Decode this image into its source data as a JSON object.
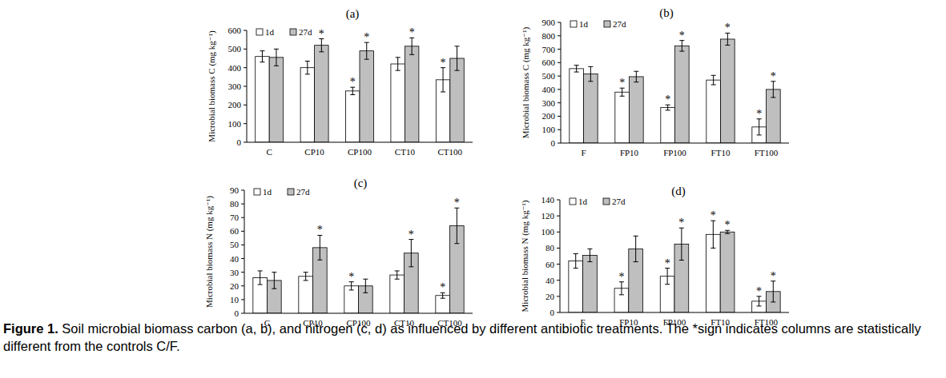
{
  "chart_data": [
    {
      "type": "bar",
      "title": "(a)",
      "y_label": "Microbial biomass C (mg kg⁻¹)",
      "categories": [
        "C",
        "CP10",
        "CP100",
        "CT10",
        "CT100"
      ],
      "series": [
        {
          "name": "1d",
          "color": "#ffffff",
          "values": [
            460,
            400,
            275,
            420,
            335
          ],
          "errors": [
            30,
            35,
            20,
            35,
            65
          ],
          "significant": [
            false,
            false,
            true,
            false,
            true
          ]
        },
        {
          "name": "27d",
          "color": "#bfbfbf",
          "values": [
            455,
            520,
            490,
            515,
            450
          ],
          "errors": [
            45,
            35,
            45,
            45,
            65
          ],
          "significant": [
            false,
            true,
            true,
            true,
            false
          ]
        }
      ],
      "significance_mark": "*",
      "ylim": [
        0,
        600
      ],
      "yticks": [
        0,
        100,
        200,
        300,
        400,
        500,
        600
      ],
      "grid": false,
      "legend": "upper left"
    },
    {
      "type": "bar",
      "title": "(b)",
      "y_label": "Microbial biomass C (mg kg⁻¹)",
      "categories": [
        "F",
        "FP10",
        "FP100",
        "FT10",
        "FT100"
      ],
      "series": [
        {
          "name": "1d",
          "color": "#ffffff",
          "values": [
            555,
            380,
            265,
            470,
            120
          ],
          "errors": [
            25,
            30,
            20,
            35,
            60
          ],
          "significant": [
            false,
            true,
            true,
            false,
            true
          ]
        },
        {
          "name": "27d",
          "color": "#bfbfbf",
          "values": [
            515,
            495,
            725,
            775,
            400
          ],
          "errors": [
            55,
            40,
            40,
            45,
            60
          ],
          "significant": [
            false,
            false,
            true,
            true,
            true
          ]
        }
      ],
      "significance_mark": "*",
      "ylim": [
        0,
        900
      ],
      "yticks": [
        0,
        100,
        200,
        300,
        400,
        500,
        600,
        700,
        800,
        900
      ],
      "grid": false,
      "legend": "upper left"
    },
    {
      "type": "bar",
      "title": "(c)",
      "y_label": "Microbial biomass N (mg kg⁻¹)",
      "categories": [
        "C",
        "CP10",
        "CP100",
        "CT10",
        "CT100"
      ],
      "series": [
        {
          "name": "1d",
          "color": "#ffffff",
          "values": [
            26,
            27,
            20,
            28,
            13
          ],
          "errors": [
            5,
            3,
            3,
            3,
            2
          ],
          "significant": [
            false,
            false,
            true,
            false,
            true
          ]
        },
        {
          "name": "27d",
          "color": "#bfbfbf",
          "values": [
            24,
            48,
            20,
            44,
            64
          ],
          "errors": [
            6,
            9,
            5,
            10,
            13
          ],
          "significant": [
            false,
            true,
            false,
            true,
            true
          ]
        }
      ],
      "significance_mark": "*",
      "ylim": [
        0,
        90
      ],
      "yticks": [
        0,
        10,
        20,
        30,
        40,
        50,
        60,
        70,
        80,
        90
      ],
      "grid": false,
      "legend": "upper left"
    },
    {
      "type": "bar",
      "title": "(d)",
      "y_label": "Microbial biomass N (mg kg⁻¹)",
      "categories": [
        "F",
        "FP10",
        "FP100",
        "FT10",
        "FT100"
      ],
      "series": [
        {
          "name": "1d",
          "color": "#ffffff",
          "values": [
            64,
            30,
            45,
            97,
            14
          ],
          "errors": [
            9,
            8,
            10,
            17,
            6
          ],
          "significant": [
            false,
            true,
            true,
            true,
            true
          ]
        },
        {
          "name": "27d",
          "color": "#bfbfbf",
          "values": [
            71,
            79,
            85,
            100,
            26
          ],
          "errors": [
            8,
            16,
            20,
            2,
            13
          ],
          "significant": [
            false,
            false,
            true,
            true,
            true
          ]
        }
      ],
      "significance_mark": "*",
      "ylim": [
        0,
        140
      ],
      "yticks": [
        0,
        20,
        40,
        60,
        80,
        100,
        120,
        140
      ],
      "grid": false,
      "legend": "upper left"
    }
  ],
  "caption": {
    "label": "Figure 1.",
    "text": "Soil microbial biomass carbon (a, b), and nitrogen (c, d) as influenced by different antibiotic treatments. The *sign indicates columns are statistically different from the controls C/F."
  }
}
